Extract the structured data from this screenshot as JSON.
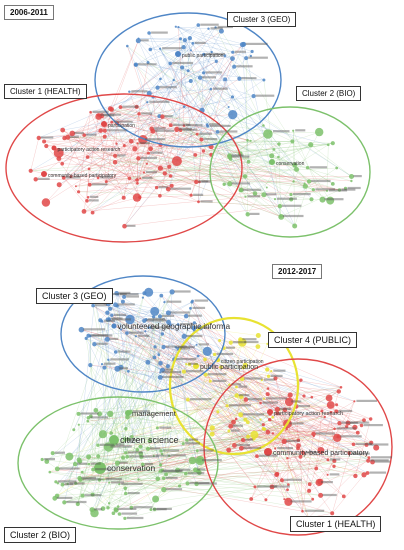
{
  "top": {
    "period": "2006-2011",
    "clusters": [
      {
        "id": "geo",
        "label": "Cluster 3 (GEO)",
        "color": "#4f86c6"
      },
      {
        "id": "health",
        "label": "Cluster 1 (HEALTH)",
        "color": "#e04848"
      },
      {
        "id": "bio",
        "label": "Cluster 2 (BIO)",
        "color": "#7cc16b"
      }
    ],
    "terms": [
      {
        "text": "public participation",
        "cluster": "geo"
      },
      {
        "text": "participation",
        "cluster": "health"
      },
      {
        "text": "participatory action research",
        "cluster": "health"
      },
      {
        "text": "community-based participatory",
        "cluster": "health"
      },
      {
        "text": "conservation",
        "cluster": "bio"
      }
    ]
  },
  "bottom": {
    "period": "2012-2017",
    "clusters": [
      {
        "id": "geo",
        "label": "Cluster 3 (GEO)",
        "color": "#4f86c6"
      },
      {
        "id": "public",
        "label": "Cluster 4 (PUBLIC)",
        "color": "#e8e232"
      },
      {
        "id": "bio",
        "label": "Cluster 2 (BIO)",
        "color": "#7cc16b"
      },
      {
        "id": "health",
        "label": "Cluster 1 (HEALTH)",
        "color": "#e04848"
      }
    ],
    "terms": [
      {
        "text": "volunteered geographic informa",
        "cluster": "geo"
      },
      {
        "text": "public participation",
        "cluster": "public"
      },
      {
        "text": "citizen participation",
        "cluster": "public"
      },
      {
        "text": "management",
        "cluster": "bio"
      },
      {
        "text": "citizen science",
        "cluster": "bio"
      },
      {
        "text": "conservation",
        "cluster": "bio"
      },
      {
        "text": "participatory action research",
        "cluster": "health"
      },
      {
        "text": "community-based participatory",
        "cluster": "health"
      }
    ]
  }
}
